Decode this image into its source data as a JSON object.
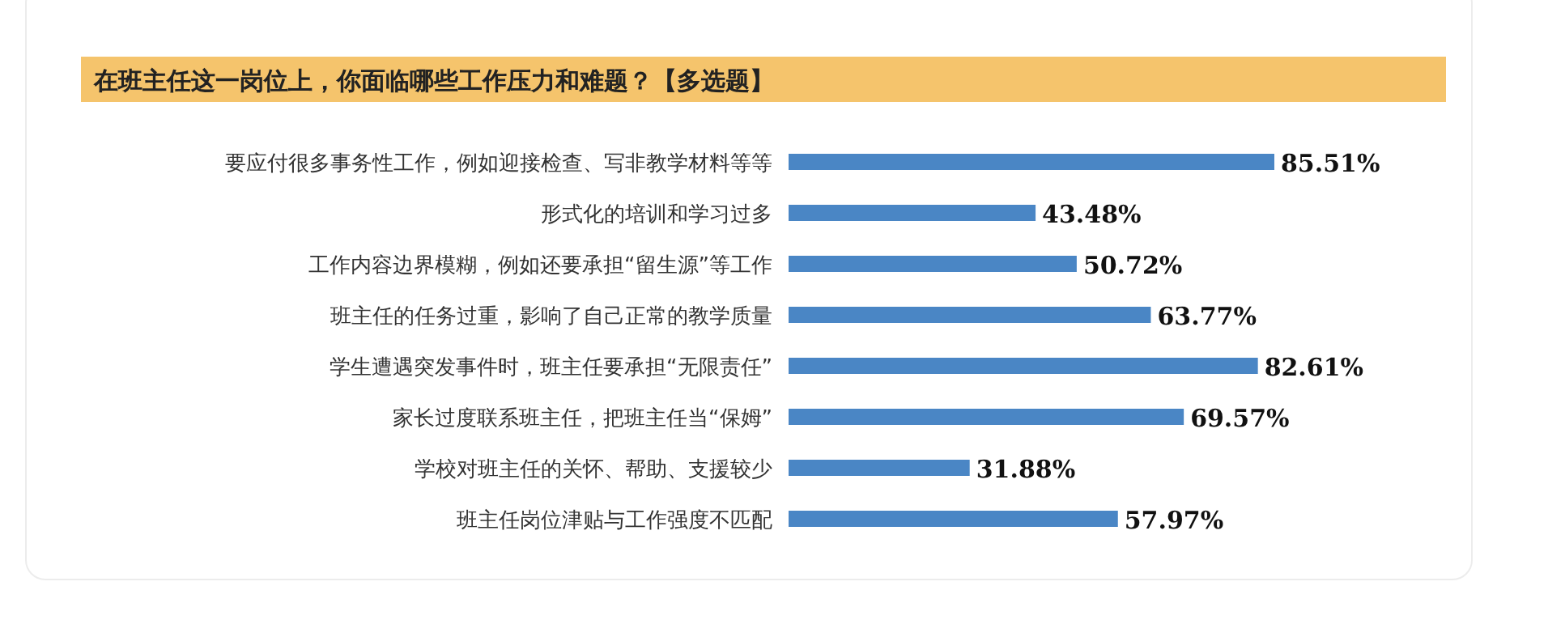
{
  "chart_data": {
    "type": "bar",
    "orientation": "horizontal",
    "title": "在班主任这一岗位上，你面临哪些工作压力和难题？【多选题】",
    "categories": [
      "要应付很多事务性工作，例如迎接检查、写非教学材料等等",
      "形式化的培训和学习过多",
      "工作内容边界模糊，例如还要承担“留生源”等工作",
      "班主任的任务过重，影响了自己正常的教学质量",
      "学生遭遇突发事件时，班主任要承担“无限责任”",
      "家长过度联系班主任，把班主任当“保姆”",
      "学校对班主任的关怀、帮助、支援较少",
      "班主任岗位津贴与工作强度不匹配"
    ],
    "values": [
      85.51,
      43.48,
      50.72,
      63.77,
      82.61,
      69.57,
      31.88,
      57.97
    ],
    "value_labels": [
      "85.51%",
      "43.48%",
      "50.72%",
      "63.77%",
      "82.61%",
      "69.57%",
      "31.88%",
      "57.97%"
    ],
    "color": "#4a86c5"
  }
}
